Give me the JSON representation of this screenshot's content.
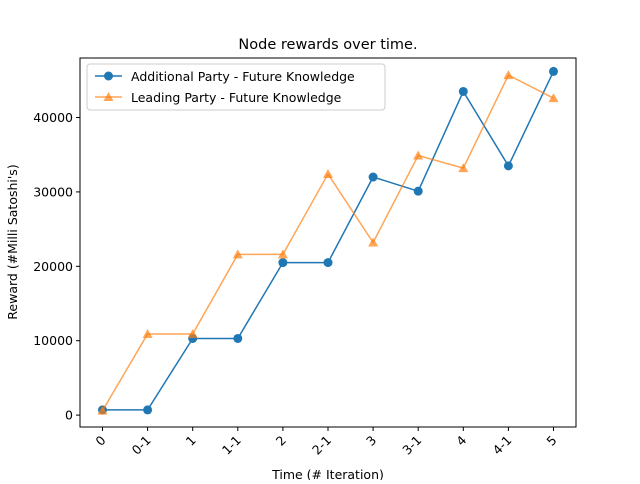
{
  "chart_data": {
    "type": "line",
    "title": "Node rewards over time.",
    "xlabel": "Time (# Iteration)",
    "ylabel": "Reward (#Milli Satoshi's)",
    "categories": [
      "0",
      "0-1",
      "1",
      "1-1",
      "2",
      "2-1",
      "3",
      "3-1",
      "4",
      "4-1",
      "5"
    ],
    "yticks": [
      0,
      10000,
      20000,
      30000,
      40000
    ],
    "ytick_labels": [
      "0",
      "10000",
      "20000",
      "30000",
      "40000"
    ],
    "ylim": [
      -1600,
      48000
    ],
    "grid": false,
    "legend_position": "upper-left",
    "series": [
      {
        "name": "Additional Party - Future Knowledge",
        "color": "#1f77b4",
        "marker": "circle",
        "values": [
          700,
          700,
          10300,
          10300,
          20500,
          20500,
          32000,
          30100,
          43500,
          33500,
          46200
        ]
      },
      {
        "name": "Leading Party - Future Knowledge",
        "color": "#ff7f0e",
        "marker": "triangle",
        "values": [
          600,
          10900,
          10900,
          21600,
          21600,
          32400,
          23200,
          34900,
          33200,
          45700,
          42600
        ]
      }
    ]
  }
}
